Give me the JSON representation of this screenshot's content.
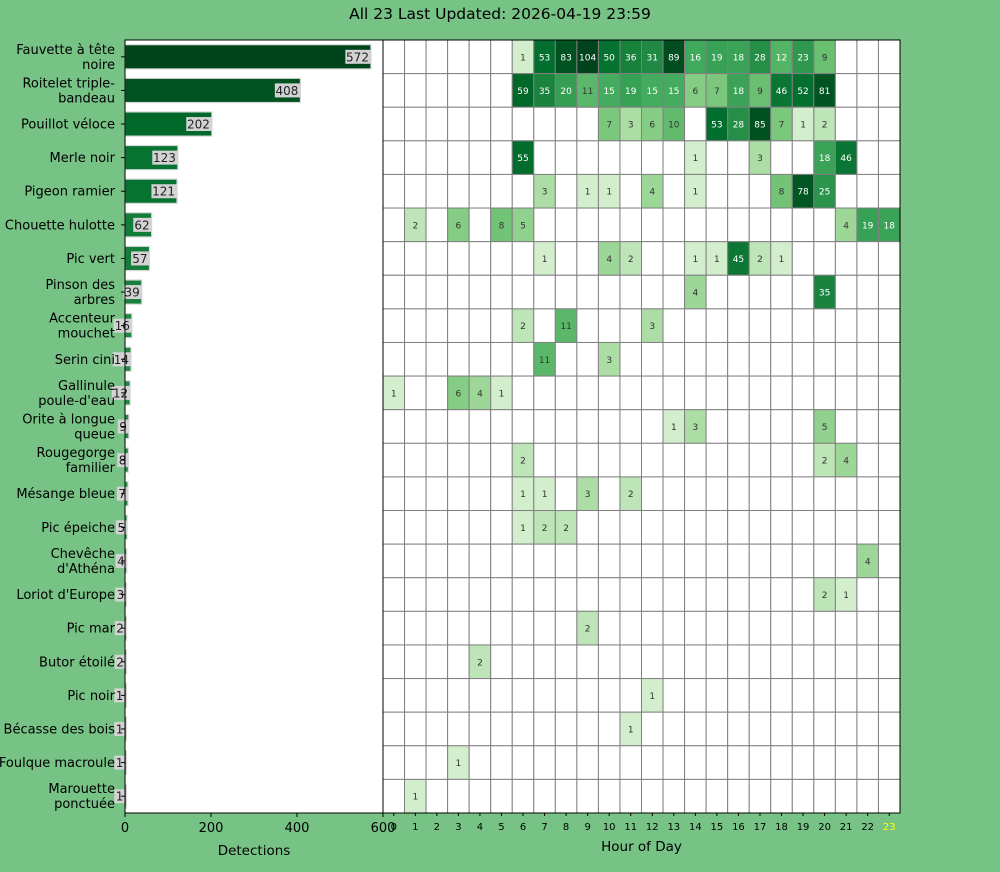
{
  "title": "All 23 Last Updated: 2026-04-19 23:59",
  "chart_data": [
    {
      "type": "bar",
      "orientation": "horizontal",
      "xlabel": "Detections",
      "ylabel": "",
      "xlim": [
        0,
        600
      ],
      "xticks": [
        0,
        200,
        400,
        600
      ],
      "categories": [
        "Fauvette à tête noire",
        "Roitelet triple-bandeau",
        "Pouillot véloce",
        "Merle noir",
        "Pigeon ramier",
        "Chouette hulotte",
        "Pic vert",
        "Pinson des arbres",
        "Accenteur mouchet",
        "Serin cini",
        "Gallinule poule-d'eau",
        "Orite à longue queue",
        "Rougegorge familier",
        "Mésange bleue",
        "Pic épeiche",
        "Chevêche d'Athéna",
        "Loriot d'Europe",
        "Pic mar",
        "Butor étoilé",
        "Pic noir",
        "Bécasse des bois",
        "Foulque macroule",
        "Marouette ponctuée"
      ],
      "category_lines": [
        [
          "Fauvette à tête",
          "noire"
        ],
        [
          "Roitelet triple-",
          "bandeau"
        ],
        [
          "Pouillot véloce"
        ],
        [
          "Merle noir"
        ],
        [
          "Pigeon ramier"
        ],
        [
          "Chouette hulotte"
        ],
        [
          "Pic vert"
        ],
        [
          "Pinson des",
          "arbres"
        ],
        [
          "Accenteur",
          "mouchet"
        ],
        [
          "Serin cini"
        ],
        [
          "Gallinule",
          "poule-d'eau"
        ],
        [
          "Orite à longue",
          "queue"
        ],
        [
          "Rougegorge",
          "familier"
        ],
        [
          "Mésange bleue"
        ],
        [
          "Pic épeiche"
        ],
        [
          "Chevêche",
          "d'Athéna"
        ],
        [
          "Loriot d'Europe"
        ],
        [
          "Pic mar"
        ],
        [
          "Butor étoilé"
        ],
        [
          "Pic noir"
        ],
        [
          "Bécasse des bois"
        ],
        [
          "Foulque macroule"
        ],
        [
          "Marouette",
          "ponctuée"
        ]
      ],
      "values": [
        572,
        408,
        202,
        123,
        121,
        62,
        57,
        39,
        16,
        14,
        12,
        9,
        8,
        7,
        5,
        4,
        3,
        2,
        2,
        1,
        1,
        1,
        1
      ]
    },
    {
      "type": "heatmap",
      "xlabel": "Hour of Day",
      "hours": [
        0,
        1,
        2,
        3,
        4,
        5,
        6,
        7,
        8,
        9,
        10,
        11,
        12,
        13,
        14,
        15,
        16,
        17,
        18,
        19,
        20,
        21,
        22,
        23
      ],
      "highlight_hour": 23,
      "highlight_color": "#ffff00",
      "cell_values": {
        "Fauvette à tête noire": {
          "6": 1,
          "7": 53,
          "8": 83,
          "9": 104,
          "10": 50,
          "11": 36,
          "12": 31,
          "13": 89,
          "14": 16,
          "15": 19,
          "16": 18,
          "17": 28,
          "18": 12,
          "19": 23,
          "20": 9
        },
        "Roitelet triple-bandeau": {
          "6": 59,
          "7": 35,
          "8": 20,
          "9": 11,
          "10": 15,
          "11": 19,
          "12": 15,
          "13": 15,
          "14": 6,
          "15": 7,
          "16": 18,
          "17": 9,
          "18": 46,
          "19": 52,
          "20": 81
        },
        "Pouillot véloce": {
          "10": 7,
          "11": 3,
          "12": 6,
          "13": 10,
          "15": 53,
          "16": 28,
          "17": 85,
          "18": 7,
          "19": 1,
          "20": 2
        },
        "Merle noir": {
          "6": 55,
          "14": 1,
          "17": 3,
          "20": 18,
          "21": 46
        },
        "Pigeon ramier": {
          "7": 3,
          "9": 1,
          "10": 1,
          "12": 4,
          "14": 1,
          "18": 8,
          "19": 78,
          "20": 25
        },
        "Chouette hulotte": {
          "1": 2,
          "3": 6,
          "5": 8,
          "6": 5,
          "21": 4,
          "22": 19,
          "23": 18
        },
        "Pic vert": {
          "7": 1,
          "10": 4,
          "11": 2,
          "14": 1,
          "15": 1,
          "16": 45,
          "17": 2,
          "18": 1
        },
        "Pinson des arbres": {
          "14": 4,
          "20": 35
        },
        "Accenteur mouchet": {
          "6": 2,
          "8": 11,
          "12": 3
        },
        "Serin cini": {
          "7": 11,
          "10": 3
        },
        "Gallinule poule-d'eau": {
          "0": 1,
          "3": 6,
          "4": 4,
          "5": 1
        },
        "Orite à longue queue": {
          "13": 1,
          "14": 3,
          "20": 5
        },
        "Rougegorge familier": {
          "6": 2,
          "20": 2,
          "21": 4
        },
        "Mésange bleue": {
          "6": 1,
          "7": 1,
          "9": 3,
          "11": 2
        },
        "Pic épeiche": {
          "6": 1,
          "7": 2,
          "8": 2
        },
        "Chevêche d'Athéna": {
          "22": 4
        },
        "Loriot d'Europe": {
          "20": 2,
          "21": 1
        },
        "Pic mar": {
          "9": 2
        },
        "Butor étoilé": {
          "4": 2
        },
        "Pic noir": {
          "12": 1
        },
        "Bécasse des bois": {
          "11": 1
        },
        "Foulque macroule": {
          "3": 1
        },
        "Marouette ponctuée": {
          "1": 1
        }
      }
    }
  ]
}
